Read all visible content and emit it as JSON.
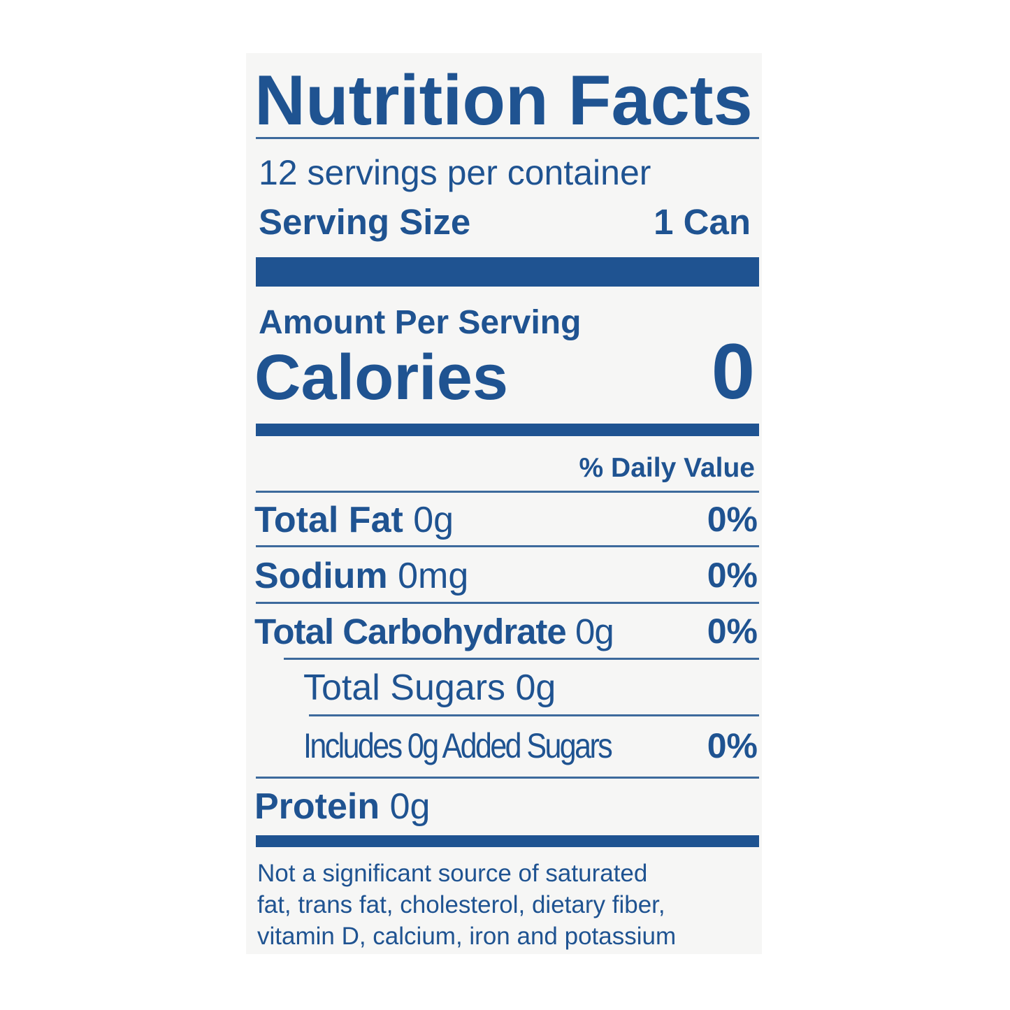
{
  "label": {
    "title": "Nutrition Facts",
    "servings_per_container": "12 servings per container",
    "serving_size_label": "Serving Size",
    "serving_size_value": "1 Can",
    "amount_per_serving": "Amount Per Serving",
    "calories_label": "Calories",
    "calories_value": "0",
    "daily_value_header": "% Daily Value",
    "nutrients": [
      {
        "name": "Total Fat",
        "amount": "0g",
        "dv": "0%"
      },
      {
        "name": "Sodium",
        "amount": "0mg",
        "dv": "0%"
      },
      {
        "name": "Total Carbohydrate",
        "amount": "0g",
        "dv": "0%"
      },
      {
        "name": "Total Sugars",
        "amount": "0g",
        "dv": ""
      },
      {
        "name": "Includes 0g Added Sugars",
        "amount": "",
        "dv": "0%"
      },
      {
        "name": "Protein",
        "amount": "0g",
        "dv": ""
      }
    ],
    "footnote": [
      "Not a significant source of saturated",
      "fat, trans fat, cholesterol, dietary fiber,",
      "vitamin D, calcium, iron and potassium"
    ]
  },
  "colors": {
    "ink": "#1f5391",
    "background": "#f6f6f5"
  }
}
